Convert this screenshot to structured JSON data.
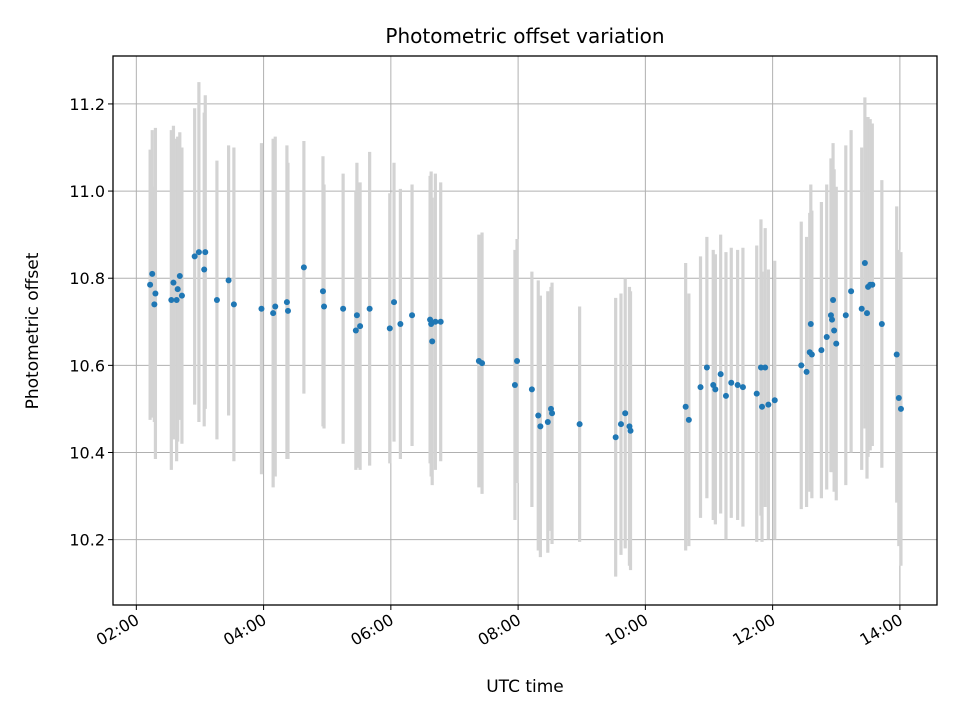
{
  "chart_data": {
    "type": "scatter",
    "title": "Photometric offset variation",
    "xlabel": "UTC time",
    "ylabel": "Photometric offset",
    "xlim": [
      "01:38",
      "14:35"
    ],
    "ylim": [
      10.05,
      11.31
    ],
    "xticks": [
      "02:00",
      "04:00",
      "06:00",
      "08:00",
      "10:00",
      "12:00",
      "14:00"
    ],
    "yticks": [
      "10.2",
      "10.4",
      "10.6",
      "10.8",
      "11.0",
      "11.2"
    ],
    "grid": true,
    "marker_color": "#1f77b4",
    "errorbar_color": "#d3d3d3",
    "points": [
      {
        "x": "02:13",
        "y": 10.785,
        "err": 0.31
      },
      {
        "x": "02:15",
        "y": 10.81,
        "err": 0.33
      },
      {
        "x": "02:17",
        "y": 10.74,
        "err": 0.27
      },
      {
        "x": "02:18",
        "y": 10.765,
        "err": 0.38
      },
      {
        "x": "02:33",
        "y": 10.75,
        "err": 0.39
      },
      {
        "x": "02:35",
        "y": 10.79,
        "err": 0.36
      },
      {
        "x": "02:38",
        "y": 10.75,
        "err": 0.37
      },
      {
        "x": "02:39",
        "y": 10.775,
        "err": 0.35
      },
      {
        "x": "02:41",
        "y": 10.805,
        "err": 0.33
      },
      {
        "x": "02:43",
        "y": 10.76,
        "err": 0.34
      },
      {
        "x": "02:55",
        "y": 10.85,
        "err": 0.34
      },
      {
        "x": "02:59",
        "y": 10.86,
        "err": 0.39
      },
      {
        "x": "03:04",
        "y": 10.82,
        "err": 0.36
      },
      {
        "x": "03:05",
        "y": 10.86,
        "err": 0.36
      },
      {
        "x": "03:16",
        "y": 10.75,
        "err": 0.32
      },
      {
        "x": "03:27",
        "y": 10.795,
        "err": 0.31
      },
      {
        "x": "03:32",
        "y": 10.74,
        "err": 0.36
      },
      {
        "x": "03:58",
        "y": 10.73,
        "err": 0.38
      },
      {
        "x": "04:09",
        "y": 10.72,
        "err": 0.4
      },
      {
        "x": "04:11",
        "y": 10.735,
        "err": 0.39
      },
      {
        "x": "04:22",
        "y": 10.745,
        "err": 0.36
      },
      {
        "x": "04:23",
        "y": 10.725,
        "err": 0.34
      },
      {
        "x": "04:38",
        "y": 10.825,
        "err": 0.29
      },
      {
        "x": "04:56",
        "y": 10.77,
        "err": 0.31
      },
      {
        "x": "04:57",
        "y": 10.735,
        "err": 0.28
      },
      {
        "x": "05:15",
        "y": 10.73,
        "err": 0.31
      },
      {
        "x": "05:27",
        "y": 10.68,
        "err": 0.32
      },
      {
        "x": "05:28",
        "y": 10.715,
        "err": 0.35
      },
      {
        "x": "05:31",
        "y": 10.69,
        "err": 0.33
      },
      {
        "x": "05:40",
        "y": 10.73,
        "err": 0.36
      },
      {
        "x": "05:59",
        "y": 10.685,
        "err": 0.31
      },
      {
        "x": "06:03",
        "y": 10.745,
        "err": 0.32
      },
      {
        "x": "06:09",
        "y": 10.695,
        "err": 0.31
      },
      {
        "x": "06:20",
        "y": 10.715,
        "err": 0.3
      },
      {
        "x": "06:37",
        "y": 10.705,
        "err": 0.33
      },
      {
        "x": "06:38",
        "y": 10.695,
        "err": 0.35
      },
      {
        "x": "06:39",
        "y": 10.655,
        "err": 0.33
      },
      {
        "x": "06:42",
        "y": 10.7,
        "err": 0.34
      },
      {
        "x": "06:47",
        "y": 10.7,
        "err": 0.32
      },
      {
        "x": "07:23",
        "y": 10.61,
        "err": 0.29
      },
      {
        "x": "07:26",
        "y": 10.605,
        "err": 0.3
      },
      {
        "x": "07:57",
        "y": 10.555,
        "err": 0.31
      },
      {
        "x": "07:59",
        "y": 10.61,
        "err": 0.28
      },
      {
        "x": "08:13",
        "y": 10.545,
        "err": 0.27
      },
      {
        "x": "08:19",
        "y": 10.485,
        "err": 0.31
      },
      {
        "x": "08:21",
        "y": 10.46,
        "err": 0.3
      },
      {
        "x": "08:28",
        "y": 10.47,
        "err": 0.3
      },
      {
        "x": "08:31",
        "y": 10.5,
        "err": 0.28
      },
      {
        "x": "08:32",
        "y": 10.49,
        "err": 0.3
      },
      {
        "x": "08:58",
        "y": 10.465,
        "err": 0.27
      },
      {
        "x": "09:32",
        "y": 10.435,
        "err": 0.32
      },
      {
        "x": "09:37",
        "y": 10.465,
        "err": 0.3
      },
      {
        "x": "09:41",
        "y": 10.49,
        "err": 0.31
      },
      {
        "x": "09:45",
        "y": 10.46,
        "err": 0.32
      },
      {
        "x": "09:46",
        "y": 10.45,
        "err": 0.32
      },
      {
        "x": "10:38",
        "y": 10.505,
        "err": 0.33
      },
      {
        "x": "10:41",
        "y": 10.475,
        "err": 0.29
      },
      {
        "x": "10:52",
        "y": 10.55,
        "err": 0.3
      },
      {
        "x": "10:58",
        "y": 10.595,
        "err": 0.3
      },
      {
        "x": "11:04",
        "y": 10.555,
        "err": 0.31
      },
      {
        "x": "11:06",
        "y": 10.545,
        "err": 0.31
      },
      {
        "x": "11:11",
        "y": 10.58,
        "err": 0.32
      },
      {
        "x": "11:16",
        "y": 10.53,
        "err": 0.33
      },
      {
        "x": "11:21",
        "y": 10.56,
        "err": 0.31
      },
      {
        "x": "11:27",
        "y": 10.555,
        "err": 0.31
      },
      {
        "x": "11:32",
        "y": 10.55,
        "err": 0.32
      },
      {
        "x": "11:45",
        "y": 10.535,
        "err": 0.34
      },
      {
        "x": "11:49",
        "y": 10.595,
        "err": 0.34
      },
      {
        "x": "11:50",
        "y": 10.505,
        "err": 0.31
      },
      {
        "x": "11:53",
        "y": 10.595,
        "err": 0.32
      },
      {
        "x": "11:56",
        "y": 10.51,
        "err": 0.31
      },
      {
        "x": "12:02",
        "y": 10.52,
        "err": 0.32
      },
      {
        "x": "12:27",
        "y": 10.6,
        "err": 0.33
      },
      {
        "x": "12:32",
        "y": 10.585,
        "err": 0.31
      },
      {
        "x": "12:35",
        "y": 10.63,
        "err": 0.32
      },
      {
        "x": "12:37",
        "y": 10.625,
        "err": 0.33
      },
      {
        "x": "12:36",
        "y": 10.695,
        "err": 0.32
      },
      {
        "x": "12:46",
        "y": 10.635,
        "err": 0.34
      },
      {
        "x": "12:51",
        "y": 10.665,
        "err": 0.35
      },
      {
        "x": "12:55",
        "y": 10.715,
        "err": 0.36
      },
      {
        "x": "12:56",
        "y": 10.705,
        "err": 0.35
      },
      {
        "x": "12:57",
        "y": 10.75,
        "err": 0.36
      },
      {
        "x": "12:58",
        "y": 10.68,
        "err": 0.37
      },
      {
        "x": "13:00",
        "y": 10.65,
        "err": 0.36
      },
      {
        "x": "13:09",
        "y": 10.715,
        "err": 0.39
      },
      {
        "x": "13:14",
        "y": 10.77,
        "err": 0.37
      },
      {
        "x": "13:24",
        "y": 10.73,
        "err": 0.37
      },
      {
        "x": "13:27",
        "y": 10.835,
        "err": 0.38
      },
      {
        "x": "13:29",
        "y": 10.72,
        "err": 0.38
      },
      {
        "x": "13:30",
        "y": 10.78,
        "err": 0.39
      },
      {
        "x": "13:32",
        "y": 10.785,
        "err": 0.38
      },
      {
        "x": "13:34",
        "y": 10.785,
        "err": 0.37
      },
      {
        "x": "13:43",
        "y": 10.695,
        "err": 0.33
      },
      {
        "x": "13:57",
        "y": 10.625,
        "err": 0.34
      },
      {
        "x": "13:59",
        "y": 10.525,
        "err": 0.34
      },
      {
        "x": "14:01",
        "y": 10.5,
        "err": 0.36
      }
    ]
  }
}
